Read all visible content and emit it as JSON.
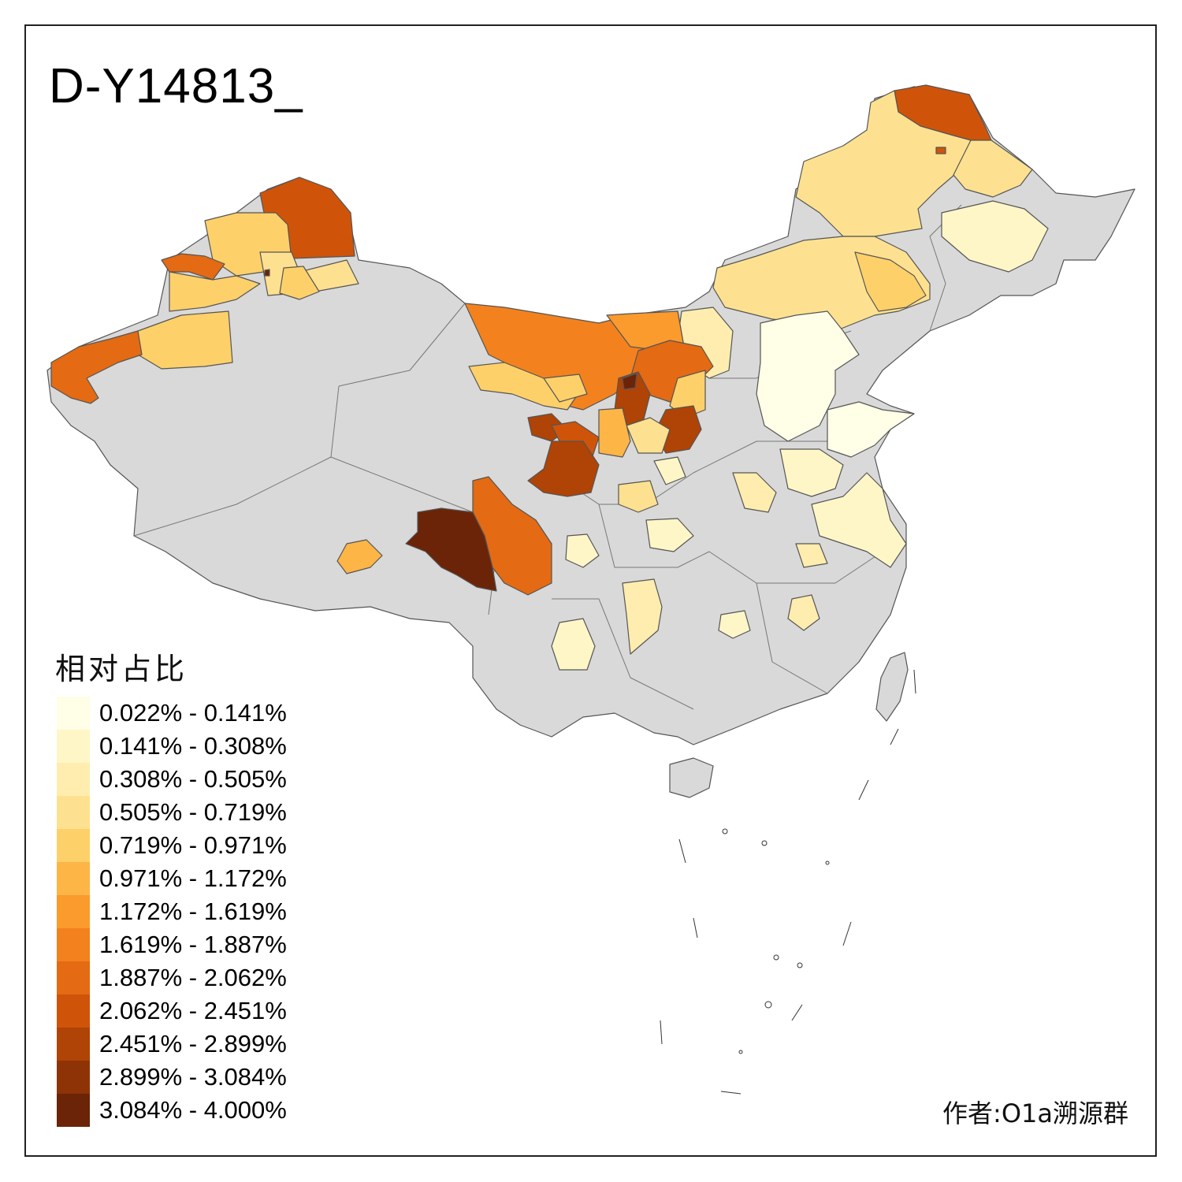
{
  "title": "D-Y14813_",
  "legend": {
    "title": "相对占比",
    "items": [
      {
        "label": "0.022% - 0.141%",
        "color": "#FFFEE6"
      },
      {
        "label": "0.141% - 0.308%",
        "color": "#FFF6C8"
      },
      {
        "label": "0.308% - 0.505%",
        "color": "#FEEDAE"
      },
      {
        "label": "0.505% - 0.719%",
        "color": "#FEE190"
      },
      {
        "label": "0.719% - 0.971%",
        "color": "#FED06A"
      },
      {
        "label": "0.971% - 1.172%",
        "color": "#FDB546"
      },
      {
        "label": "1.172% - 1.619%",
        "color": "#FB9A2D"
      },
      {
        "label": "1.619% - 1.887%",
        "color": "#F3821E"
      },
      {
        "label": "1.887% - 2.062%",
        "color": "#E46A13"
      },
      {
        "label": "2.062% - 2.451%",
        "color": "#CF540A"
      },
      {
        "label": "2.451% - 2.899%",
        "color": "#B04306"
      },
      {
        "label": "2.899% - 3.084%",
        "color": "#8E3306"
      },
      {
        "label": "3.084% - 4.000%",
        "color": "#6B2407"
      }
    ]
  },
  "no_data_color": "#D9D9D9",
  "author": "作者:O1a溯源群"
}
